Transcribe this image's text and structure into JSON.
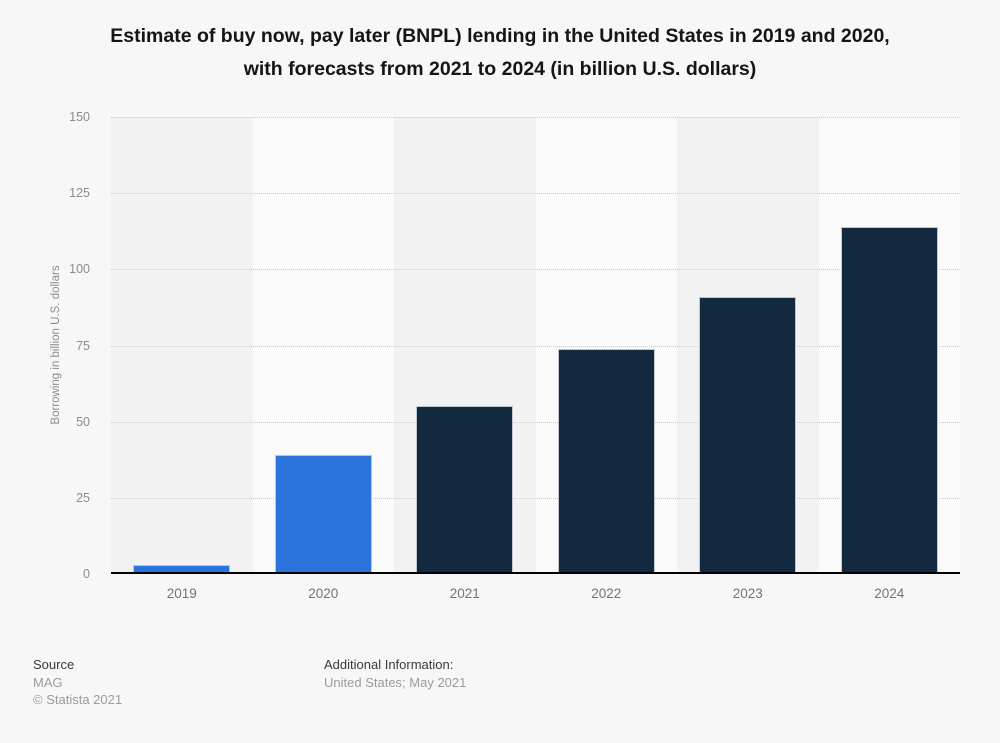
{
  "title_lines": [
    "Estimate of buy now, pay later (BNPL) lending in the United States in 2019 and 2020,",
    "with forecasts from 2021 to 2024 (in billion U.S. dollars)"
  ],
  "chart_data": {
    "type": "bar",
    "title": "Estimate of buy now, pay later (BNPL) lending in the United States in 2019 and 2020, with forecasts from 2021 to 2024 (in billion U.S. dollars)",
    "categories": [
      "2019",
      "2020",
      "2021",
      "2022",
      "2023",
      "2024"
    ],
    "values": [
      3,
      39,
      55,
      74,
      91,
      114
    ],
    "colors": [
      "#2a74dc",
      "#2a74dc",
      "#13293f",
      "#13293f",
      "#13293f",
      "#13293f"
    ],
    "xlabel": "",
    "ylabel": "Borrowing in billion U.S. dollars",
    "ylim": [
      0,
      150
    ],
    "yticks": [
      0,
      25,
      50,
      75,
      100,
      125,
      150
    ],
    "grid": "horizontal-dotted",
    "legend": "none",
    "style": {
      "actual_bar_color": "#2a74dc",
      "forecast_bar_color": "#13293f",
      "band_colors": [
        "#f2f2f2",
        "#fafafa"
      ],
      "grid_color": "#c9c9c9",
      "axis_color": "#000000",
      "background_color": "#f7f7f7"
    }
  },
  "footer": {
    "source_label": "Source",
    "source_value": "MAG",
    "copyright": "© Statista 2021",
    "additional_label": "Additional Information:",
    "additional_value": "United States; May 2021"
  }
}
